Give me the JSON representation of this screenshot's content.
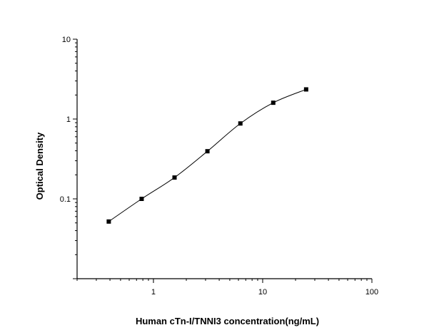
{
  "chart_data": {
    "type": "scatter",
    "title": "",
    "xlabel": "Human cTn-I/TNNI3 concentration(ng/mL)",
    "ylabel": "Optical Density",
    "x_scale": "log",
    "y_scale": "log",
    "xlim": [
      0.2,
      100
    ],
    "ylim": [
      0.01,
      10
    ],
    "x_ticks": [
      {
        "value": 1,
        "label": "1"
      },
      {
        "value": 10,
        "label": "10"
      },
      {
        "value": 100,
        "label": "100"
      }
    ],
    "y_ticks": [
      {
        "value": 0.1,
        "label": "0.1"
      },
      {
        "value": 1,
        "label": "1"
      },
      {
        "value": 10,
        "label": "10"
      }
    ],
    "series": [
      {
        "marker": "square",
        "fit": "smooth curve",
        "points": [
          {
            "x": 0.39,
            "y": 0.052
          },
          {
            "x": 0.78,
            "y": 0.1
          },
          {
            "x": 1.56,
            "y": 0.185
          },
          {
            "x": 3.12,
            "y": 0.395
          },
          {
            "x": 6.25,
            "y": 0.88
          },
          {
            "x": 12.5,
            "y": 1.6
          },
          {
            "x": 25,
            "y": 2.35
          }
        ]
      }
    ],
    "grid": false,
    "legend": "none"
  }
}
